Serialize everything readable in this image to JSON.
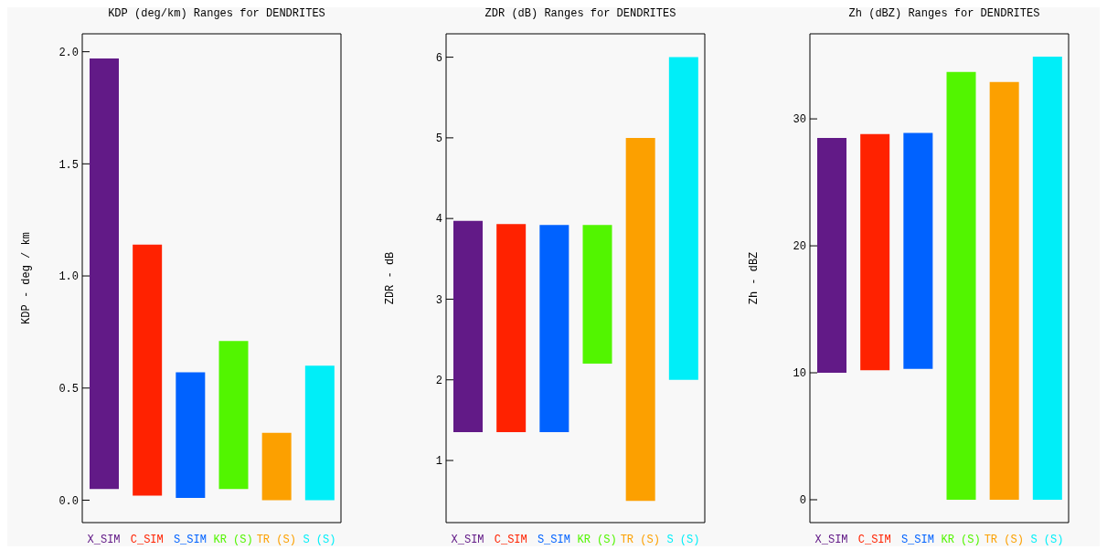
{
  "chart_data": [
    {
      "type": "bar",
      "title": "KDP (deg/km) Ranges for DENDRITES",
      "ylabel": "KDP - deg / km",
      "categories": [
        "X_SIM",
        "C_SIM",
        "S_SIM",
        "KR (S)",
        "TR (S)",
        "S (S)"
      ],
      "base": [
        0.05,
        0.02,
        0.01,
        0.05,
        0,
        0
      ],
      "values": [
        1.92,
        1.12,
        0.56,
        0.66,
        0.3,
        0.6
      ],
      "colors": [
        "#621a87",
        "#ff2200",
        "#0062ff",
        "#52f500",
        "#fca000",
        "#00eef8"
      ],
      "ylim": [
        -0.1,
        2.08
      ],
      "yticks": [
        {
          "value": 0,
          "label": "0.0"
        },
        0.5,
        {
          "value": 1,
          "label": "1.0"
        },
        1.5,
        {
          "value": 2,
          "label": "2.0"
        }
      ],
      "grid": false,
      "legend": false
    },
    {
      "type": "bar",
      "title": "ZDR (dB) Ranges for DENDRITES",
      "ylabel": "ZDR - dB",
      "categories": [
        "X_SIM",
        "C_SIM",
        "S_SIM",
        "KR (S)",
        "TR (S)",
        "S (S)"
      ],
      "base": [
        1.35,
        1.35,
        1.35,
        2.2,
        0.5,
        2.0
      ],
      "values": [
        2.62,
        2.58,
        2.57,
        1.72,
        4.5,
        4.0
      ],
      "colors": [
        "#621a87",
        "#ff2200",
        "#0062ff",
        "#52f500",
        "#fca000",
        "#00eef8"
      ],
      "ylim": [
        0.23,
        6.29
      ],
      "yticks": [
        1,
        2,
        3,
        4,
        5,
        6
      ],
      "grid": false,
      "legend": false
    },
    {
      "type": "bar",
      "title": "Zh (dBZ) Ranges for DENDRITES",
      "ylabel": "Zh - dBZ",
      "categories": [
        "X_SIM",
        "C_SIM",
        "S_SIM",
        "KR (S)",
        "TR (S)",
        "S (S)"
      ],
      "base": [
        10,
        10.2,
        10.3,
        0,
        0,
        0
      ],
      "values": [
        18.5,
        18.6,
        18.6,
        33.7,
        32.9,
        34.9
      ],
      "colors": [
        "#621a87",
        "#ff2200",
        "#0062ff",
        "#52f500",
        "#fca000",
        "#00eef8"
      ],
      "ylim": [
        -1.8,
        36.7
      ],
      "yticks": [
        0,
        10,
        20,
        30
      ],
      "grid": false,
      "legend": false
    }
  ]
}
